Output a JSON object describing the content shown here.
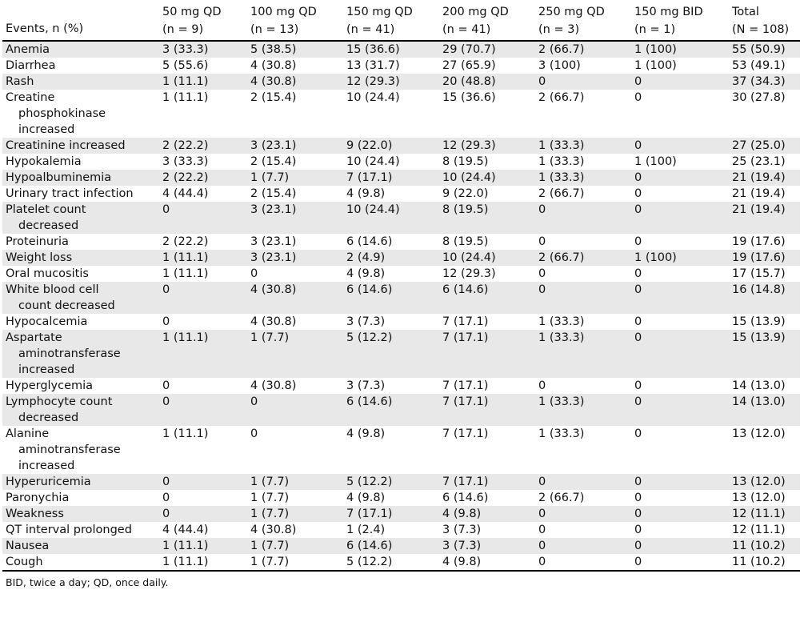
{
  "headers": [
    {
      "line1": "",
      "line2": "Events, n (%)"
    },
    {
      "line1": "50 mg QD",
      "line2": "(n = 9)"
    },
    {
      "line1": "100 mg QD",
      "line2": "(n = 13)"
    },
    {
      "line1": "150 mg QD",
      "line2": "(n = 41)"
    },
    {
      "line1": "200 mg QD",
      "line2": "(n = 41)"
    },
    {
      "line1": "250 mg QD",
      "line2": "(n = 3)"
    },
    {
      "line1": "150 mg BID",
      "line2": "(n = 1)"
    },
    {
      "line1": "Total",
      "line2": "(N = 108)"
    }
  ],
  "rows": [
    {
      "event": [
        "Anemia"
      ],
      "cells": [
        "3 (33.3)",
        "5 (38.5)",
        "15 (36.6)",
        "29 (70.7)",
        "2 (66.7)",
        "1 (100)",
        "55 (50.9)"
      ]
    },
    {
      "event": [
        "Diarrhea"
      ],
      "cells": [
        "5 (55.6)",
        "4 (30.8)",
        "13 (31.7)",
        "27 (65.9)",
        "3 (100)",
        "1 (100)",
        "53 (49.1)"
      ]
    },
    {
      "event": [
        "Rash"
      ],
      "cells": [
        "1 (11.1)",
        "4 (30.8)",
        "12 (29.3)",
        "20 (48.8)",
        "0",
        "0",
        "37 (34.3)"
      ]
    },
    {
      "event": [
        "Creatine",
        "phosphokinase",
        "increased"
      ],
      "cells": [
        "1 (11.1)",
        "2 (15.4)",
        "10 (24.4)",
        "15 (36.6)",
        "2 (66.7)",
        "0",
        "30 (27.8)"
      ]
    },
    {
      "event": [
        "Creatinine increased"
      ],
      "cells": [
        "2 (22.2)",
        "3 (23.1)",
        "9 (22.0)",
        "12 (29.3)",
        "1 (33.3)",
        "0",
        "27 (25.0)"
      ]
    },
    {
      "event": [
        "Hypokalemia"
      ],
      "cells": [
        "3 (33.3)",
        "2 (15.4)",
        "10 (24.4)",
        "8 (19.5)",
        "1 (33.3)",
        "1 (100)",
        "25 (23.1)"
      ]
    },
    {
      "event": [
        "Hypoalbuminemia"
      ],
      "cells": [
        "2 (22.2)",
        "1 (7.7)",
        "7 (17.1)",
        "10 (24.4)",
        "1 (33.3)",
        "0",
        "21 (19.4)"
      ]
    },
    {
      "event": [
        "Urinary tract infection"
      ],
      "cells": [
        "4 (44.4)",
        "2 (15.4)",
        "4 (9.8)",
        "9 (22.0)",
        "2 (66.7)",
        "0",
        "21 (19.4)"
      ]
    },
    {
      "event": [
        "Platelet count",
        "decreased"
      ],
      "cells": [
        "0",
        "3 (23.1)",
        "10 (24.4)",
        "8 (19.5)",
        "0",
        "0",
        "21 (19.4)"
      ]
    },
    {
      "event": [
        "Proteinuria"
      ],
      "cells": [
        "2 (22.2)",
        "3 (23.1)",
        "6 (14.6)",
        "8 (19.5)",
        "0",
        "0",
        "19 (17.6)"
      ]
    },
    {
      "event": [
        "Weight loss"
      ],
      "cells": [
        "1 (11.1)",
        "3 (23.1)",
        "2 (4.9)",
        "10 (24.4)",
        "2 (66.7)",
        "1 (100)",
        "19 (17.6)"
      ]
    },
    {
      "event": [
        "Oral mucositis"
      ],
      "cells": [
        "1 (11.1)",
        "0",
        "4 (9.8)",
        "12 (29.3)",
        "0",
        "0",
        "17 (15.7)"
      ]
    },
    {
      "event": [
        "White blood cell",
        "count decreased"
      ],
      "cells": [
        "0",
        "4 (30.8)",
        "6 (14.6)",
        "6 (14.6)",
        "0",
        "0",
        "16 (14.8)"
      ]
    },
    {
      "event": [
        "Hypocalcemia"
      ],
      "cells": [
        "0",
        "4 (30.8)",
        "3 (7.3)",
        "7 (17.1)",
        "1 (33.3)",
        "0",
        "15 (13.9)"
      ]
    },
    {
      "event": [
        "Aspartate",
        "aminotransferase",
        "increased"
      ],
      "cells": [
        "1 (11.1)",
        "1 (7.7)",
        "5 (12.2)",
        "7 (17.1)",
        "1 (33.3)",
        "0",
        "15 (13.9)"
      ]
    },
    {
      "event": [
        "Hyperglycemia"
      ],
      "cells": [
        "0",
        "4 (30.8)",
        "3 (7.3)",
        "7 (17.1)",
        "0",
        "0",
        "14 (13.0)"
      ]
    },
    {
      "event": [
        "Lymphocyte count",
        "decreased"
      ],
      "cells": [
        "0",
        "0",
        "6 (14.6)",
        "7 (17.1)",
        "1 (33.3)",
        "0",
        "14 (13.0)"
      ]
    },
    {
      "event": [
        "Alanine",
        "aminotransferase",
        "increased"
      ],
      "cells": [
        "1 (11.1)",
        "0",
        "4 (9.8)",
        "7 (17.1)",
        "1 (33.3)",
        "0",
        "13 (12.0)"
      ]
    },
    {
      "event": [
        "Hyperuricemia"
      ],
      "cells": [
        "0",
        "1 (7.7)",
        "5 (12.2)",
        "7 (17.1)",
        "0",
        "0",
        "13 (12.0)"
      ]
    },
    {
      "event": [
        "Paronychia"
      ],
      "cells": [
        "0",
        "1 (7.7)",
        "4 (9.8)",
        "6 (14.6)",
        "2 (66.7)",
        "0",
        "13 (12.0)"
      ]
    },
    {
      "event": [
        "Weakness"
      ],
      "cells": [
        "0",
        "1 (7.7)",
        "7 (17.1)",
        "4 (9.8)",
        "0",
        "0",
        "12 (11.1)"
      ]
    },
    {
      "event": [
        "QT interval prolonged"
      ],
      "cells": [
        "4 (44.4)",
        "4 (30.8)",
        "1 (2.4)",
        "3 (7.3)",
        "0",
        "0",
        "12 (11.1)"
      ]
    },
    {
      "event": [
        "Nausea"
      ],
      "cells": [
        "1 (11.1)",
        "1 (7.7)",
        "6 (14.6)",
        "3 (7.3)",
        "0",
        "0",
        "11 (10.2)"
      ]
    },
    {
      "event": [
        "Cough"
      ],
      "cells": [
        "1 (11.1)",
        "1 (7.7)",
        "5 (12.2)",
        "4 (9.8)",
        "0",
        "0",
        "11 (10.2)"
      ]
    }
  ],
  "footnote": "BID, twice a day; QD, once daily."
}
